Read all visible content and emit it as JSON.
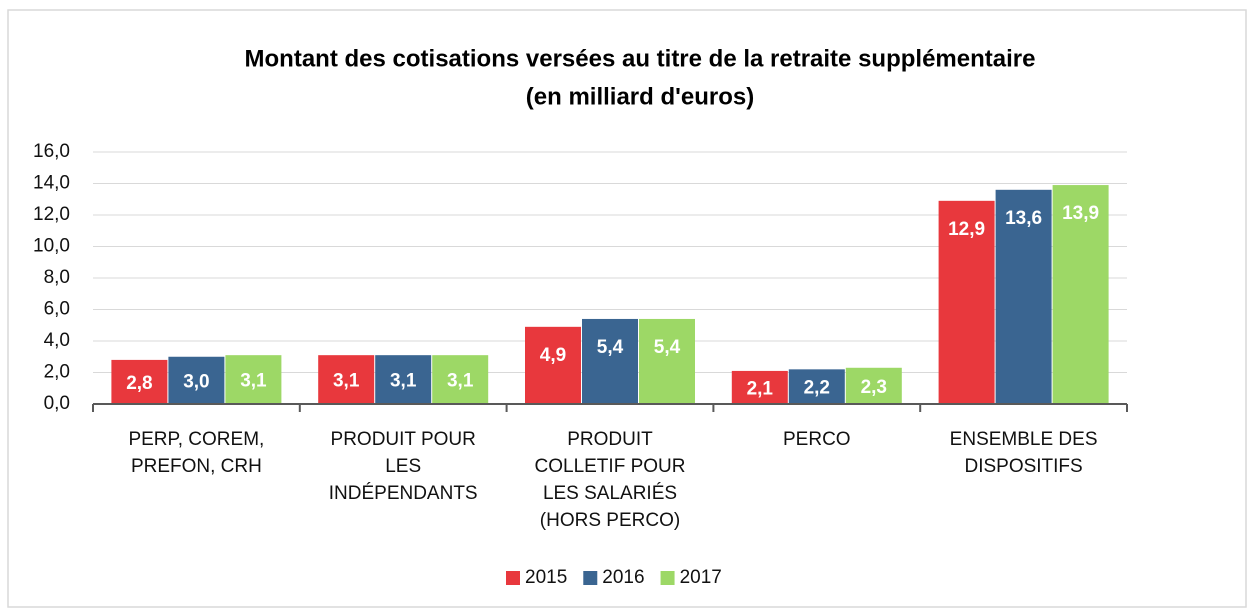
{
  "chart_data": {
    "type": "bar",
    "title": [
      "Montant des cotisations versées au titre de la retraite supplémentaire",
      "(en milliard d'euros)"
    ],
    "categories": [
      "PERP, COREM, PREFON, CRH",
      "PRODUIT POUR LES INDÉPENDANTS",
      "PRODUIT COLLETIF POUR LES SALARIÉS (HORS PERCO)",
      "PERCO",
      "ENSEMBLE DES DISPOSITIFS"
    ],
    "series": [
      {
        "name": "2015",
        "color": "#e8383d",
        "values": [
          2.8,
          3.1,
          4.9,
          2.1,
          12.9
        ],
        "value_labels": [
          "2,8",
          "3,1",
          "4,9",
          "2,1",
          "12,9"
        ]
      },
      {
        "name": "2016",
        "color": "#3a6591",
        "values": [
          3.0,
          3.1,
          5.4,
          2.2,
          13.6
        ],
        "value_labels": [
          "3,0",
          "3,1",
          "5,4",
          "2,2",
          "13,6"
        ]
      },
      {
        "name": "2017",
        "color": "#9dd866",
        "values": [
          3.1,
          3.1,
          5.4,
          2.3,
          13.9
        ],
        "value_labels": [
          "3,1",
          "3,1",
          "5,4",
          "2,3",
          "13,9"
        ]
      }
    ],
    "ylim": [
      0,
      16
    ],
    "yticks": [
      {
        "value": 0,
        "label": "0,0"
      },
      {
        "value": 2,
        "label": "2,0"
      },
      {
        "value": 4,
        "label": "4,0"
      },
      {
        "value": 6,
        "label": "6,0"
      },
      {
        "value": 8,
        "label": "8,0"
      },
      {
        "value": 10,
        "label": "10,0"
      },
      {
        "value": 12,
        "label": "12,0"
      },
      {
        "value": 14,
        "label": "14,0"
      },
      {
        "value": 16,
        "label": "16,0"
      }
    ],
    "grid": true,
    "legend": "bottom"
  }
}
